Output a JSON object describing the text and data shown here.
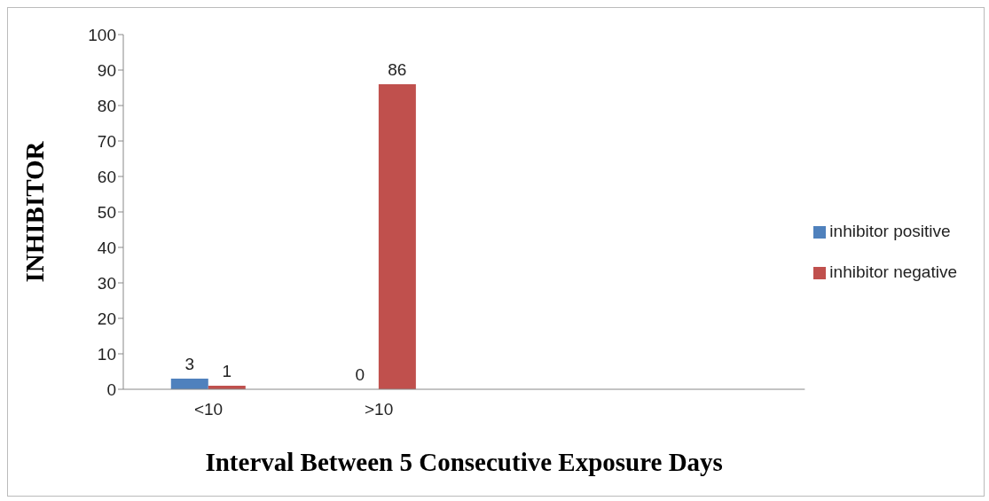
{
  "chart_data": {
    "type": "bar",
    "xlabel": "Interval Between 5 Consecutive Exposure Days",
    "ylabel": "INHIBITOR",
    "categories": [
      "<10",
      ">10",
      null,
      null
    ],
    "series": [
      {
        "name": "inhibitor positive",
        "color": "#4f81bd",
        "values": [
          3,
          0,
          null,
          null
        ]
      },
      {
        "name": "inhibitor negative",
        "color": "#c0504d",
        "values": [
          1,
          86,
          null,
          null
        ]
      }
    ],
    "ylim": [
      0,
      100
    ],
    "yticks": [
      0,
      10,
      20,
      30,
      40,
      50,
      60,
      70,
      80,
      90,
      100
    ],
    "grid": false,
    "legend": "right",
    "data_labels": true
  }
}
